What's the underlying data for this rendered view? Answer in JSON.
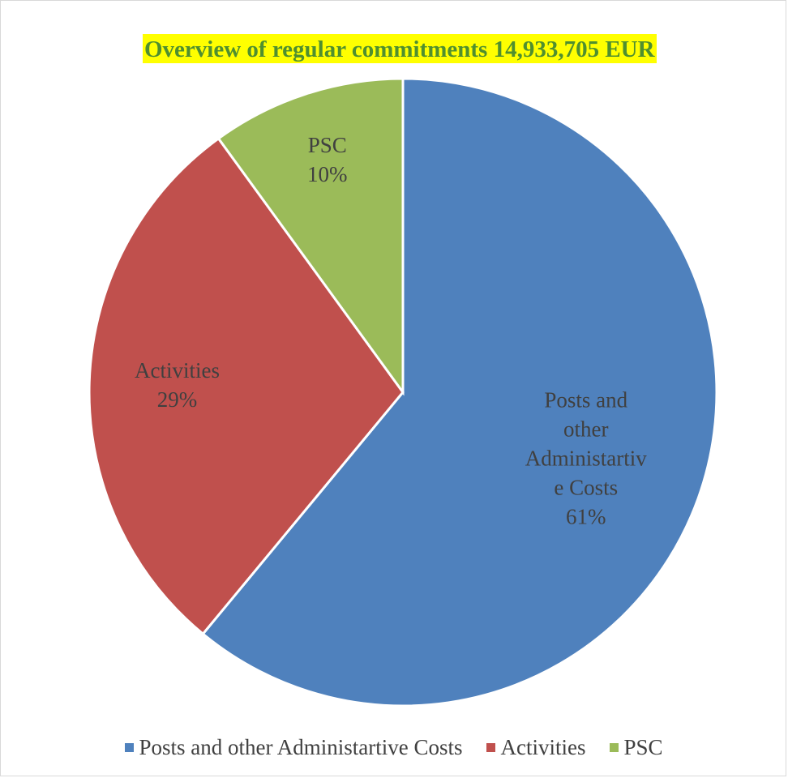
{
  "chart_data": {
    "type": "pie",
    "title": "Overview of regular commitments 14,933,705 EUR",
    "categories": [
      "Posts and other Administartive Costs",
      "Activities",
      "PSC"
    ],
    "values": [
      61,
      29,
      10
    ],
    "data_labels": [
      [
        "Posts and",
        "other",
        "Administartiv",
        "e Costs",
        "61%"
      ],
      [
        "Activities",
        "29%"
      ],
      [
        "PSC",
        "10%"
      ]
    ],
    "colors": [
      "#4f81bd",
      "#c0504d",
      "#9bbb59"
    ],
    "legend_position": "bottom",
    "title_highlight_color": "#ffff00",
    "title_color": "#4f8f2f"
  }
}
